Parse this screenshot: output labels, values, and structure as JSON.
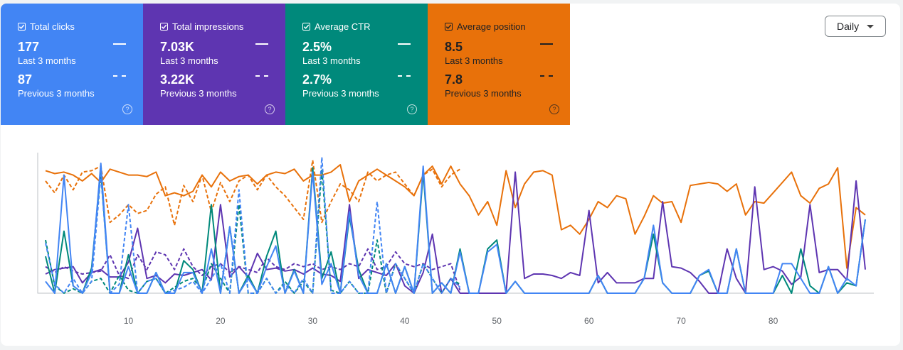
{
  "cards": [
    {
      "key": "clicks",
      "label": "Total clicks",
      "value_current": "177",
      "period_current": "Last 3 months",
      "value_previous": "87",
      "period_previous": "Previous 3 months",
      "color": "#4285f4",
      "help_icon": "question-circle-icon"
    },
    {
      "key": "impressions",
      "label": "Total impressions",
      "value_current": "7.03K",
      "period_current": "Last 3 months",
      "value_previous": "3.22K",
      "period_previous": "Previous 3 months",
      "color": "#5e35b1",
      "help_icon": "question-circle-icon"
    },
    {
      "key": "ctr",
      "label": "Average CTR",
      "value_current": "2.5%",
      "period_current": "Last 3 months",
      "value_previous": "2.7%",
      "period_previous": "Previous 3 months",
      "color": "#00897b",
      "help_icon": "question-circle-icon"
    },
    {
      "key": "position",
      "label": "Average position",
      "value_current": "8.5",
      "period_current": "Last 3 months",
      "value_previous": "7.8",
      "period_previous": "Previous 3 months",
      "color": "#e8710a",
      "help_icon": "question-circle-icon"
    }
  ],
  "granularity": {
    "selected": "Daily",
    "icon": "caret-down-icon"
  },
  "chart_data": {
    "type": "line",
    "x_ticks": [
      10,
      20,
      30,
      40,
      50,
      60,
      70,
      80
    ],
    "xlim": [
      1,
      90
    ],
    "ylim": [
      0,
      1
    ],
    "grid": false,
    "legend": "none",
    "series": [
      {
        "key": "position",
        "style": "solid",
        "color": "#e8710a",
        "values": [
          0.83,
          0.81,
          0.82,
          0.8,
          0.76,
          0.81,
          0.75,
          0.84,
          0.82,
          0.8,
          0.8,
          0.79,
          0.82,
          0.66,
          0.68,
          0.66,
          0.69,
          0.8,
          0.72,
          0.82,
          0.76,
          0.79,
          0.8,
          0.74,
          0.8,
          0.82,
          0.81,
          0.84,
          0.76,
          0.8,
          0.8,
          0.82,
          0.87,
          0.62,
          0.76,
          0.8,
          0.84,
          0.8,
          0.76,
          0.72,
          0.66,
          0.8,
          0.86,
          0.74,
          0.86,
          0.74,
          0.66,
          0.53,
          0.62,
          0.46,
          0.83,
          0.58,
          0.74,
          0.82,
          0.83,
          0.8,
          0.43,
          0.46,
          0.4,
          0.5,
          0.62,
          0.58,
          0.66,
          0.64,
          0.4,
          0.52,
          0.66,
          0.61,
          0.62,
          0.48,
          0.73,
          0.74,
          0.75,
          0.74,
          0.69,
          0.74,
          0.53,
          0.62,
          0.61,
          0.68,
          0.75,
          0.82,
          0.66,
          0.61,
          0.71,
          0.74,
          0.85,
          0.17,
          0.58,
          0.53
        ]
      },
      {
        "key": "position",
        "style": "dashed",
        "color": "#e8710a",
        "values": [
          0.76,
          0.68,
          0.8,
          0.7,
          0.82,
          0.83,
          0.86,
          0.48,
          0.53,
          0.6,
          0.54,
          0.56,
          0.67,
          0.72,
          0.46,
          0.73,
          0.62,
          0.8,
          0.55,
          0.75,
          0.62,
          0.76,
          0.8,
          0.7,
          0.8,
          0.72,
          0.66,
          0.58,
          0.5,
          0.9,
          0.48,
          0.62,
          0.74,
          0.7,
          0.62,
          0.82,
          0.76,
          0.8,
          0.82,
          0.74,
          0.66,
          0.8,
          0.84,
          0.72,
          0.8,
          0.84
        ]
      },
      {
        "key": "impressions",
        "style": "solid",
        "color": "#5e35b1",
        "values": [
          0.13,
          0.16,
          0.17,
          0.18,
          0.07,
          0.14,
          0.16,
          0.11,
          0.11,
          0.21,
          0.44,
          0.1,
          0.12,
          0.07,
          0.13,
          0.12,
          0.14,
          0.16,
          0.09,
          0.6,
          0.11,
          0.18,
          0.11,
          0.27,
          0.16,
          0.17,
          0.15,
          0.16,
          0.13,
          0.17,
          0.13,
          0.12,
          0.08,
          0.6,
          0.1,
          0.16,
          0.14,
          0.12,
          0.2,
          0.05,
          0.0,
          0.14,
          0.4,
          0.0,
          0.1,
          0.0,
          0.0,
          0.0,
          0.0,
          0.0,
          0.0,
          0.82,
          0.1,
          0.13,
          0.13,
          0.12,
          0.1,
          0.14,
          0.12,
          0.56,
          0.07,
          0.14,
          0.07,
          0.07,
          0.07,
          0.1,
          0.1,
          0.62,
          0.18,
          0.17,
          0.14,
          0.08,
          0.0,
          0.0,
          0.3,
          0.1,
          0.0,
          0.72,
          0.16,
          0.18,
          0.15,
          0.06,
          0.11,
          0.6,
          0.14,
          0.16,
          0.16,
          0.09,
          0.76,
          0.16
        ]
      },
      {
        "key": "impressions",
        "style": "dashed",
        "color": "#5e35b1",
        "values": [
          0.18,
          0.14,
          0.18,
          0.15,
          0.13,
          0.14,
          0.15,
          0.26,
          0.12,
          0.1,
          0.26,
          0.16,
          0.28,
          0.26,
          0.16,
          0.3,
          0.18,
          0.12,
          0.18,
          0.2,
          0.14,
          0.18,
          0.16,
          0.14,
          0.24,
          0.18,
          0.16,
          0.2,
          0.18,
          0.2,
          0.16,
          0.18,
          0.16,
          0.2,
          0.18,
          0.3,
          0.16,
          0.18,
          0.28,
          0.2,
          0.18,
          0.2,
          0.16,
          0.18,
          0.2,
          0.02
        ]
      },
      {
        "key": "ctr",
        "style": "solid",
        "color": "#00897b",
        "values": [
          0.25,
          0.0,
          0.42,
          0.05,
          0.0,
          0.17,
          0.83,
          0.0,
          0.0,
          0.26,
          0.0,
          0.0,
          0.14,
          0.0,
          0.0,
          0.22,
          0.16,
          0.0,
          0.6,
          0.0,
          0.45,
          0.0,
          0.12,
          0.0,
          0.25,
          0.42,
          0.0,
          0.16,
          0.0,
          0.85,
          0.1,
          0.28,
          0.0,
          0.52,
          0.16,
          0.0,
          0.0,
          0.2,
          0.0,
          0.18,
          0.0,
          0.82,
          0.0,
          0.07,
          0.0,
          0.3,
          0.0,
          0.0,
          0.3,
          0.36,
          0.0,
          0.08,
          0.0,
          0.0,
          0.0,
          0.0,
          0.0,
          0.0,
          0.0,
          0.0,
          0.12,
          0.0,
          0.0,
          0.0,
          0.0,
          0.1,
          0.4,
          0.07,
          0.0,
          0.0,
          0.0,
          0.12,
          0.15,
          0.0,
          0.0,
          0.3,
          0.0,
          0.0,
          0.0,
          0.0,
          0.12,
          0.0,
          0.3,
          0.05,
          0.0,
          0.18,
          0.0,
          0.07,
          0.05,
          0.5
        ]
      },
      {
        "key": "ctr",
        "style": "dashed",
        "color": "#00897b",
        "values": [
          0.36,
          0.05,
          0.0,
          0.03,
          0.0,
          0.08,
          0.1,
          0.0,
          0.12,
          0.02,
          0.0,
          0.08,
          0.1,
          0.0,
          0.04,
          0.08,
          0.1,
          0.02,
          0.2,
          0.1,
          0.0,
          0.6,
          0.0,
          0.0,
          0.1,
          0.0,
          0.08,
          0.0,
          0.08,
          0.0,
          0.84,
          0.02,
          0.0,
          0.08,
          0.0,
          0.0,
          0.36,
          0.0,
          0.2,
          0.1,
          0.0,
          0.2,
          0.1,
          0.0,
          0.1,
          0.06
        ]
      },
      {
        "key": "clicks",
        "style": "solid",
        "color": "#4285f4",
        "values": [
          0.08,
          0.0,
          0.8,
          0.05,
          0.0,
          0.14,
          0.88,
          0.0,
          0.0,
          0.18,
          0.0,
          0.0,
          0.14,
          0.0,
          0.0,
          0.14,
          0.14,
          0.0,
          0.3,
          0.0,
          0.45,
          0.0,
          0.1,
          0.0,
          0.18,
          0.32,
          0.0,
          0.15,
          0.0,
          0.82,
          0.06,
          0.2,
          0.0,
          0.55,
          0.12,
          0.0,
          0.0,
          0.2,
          0.0,
          0.18,
          0.0,
          0.86,
          0.0,
          0.07,
          0.0,
          0.28,
          0.0,
          0.0,
          0.28,
          0.33,
          0.0,
          0.08,
          0.0,
          0.0,
          0.0,
          0.0,
          0.0,
          0.0,
          0.0,
          0.0,
          0.12,
          0.0,
          0.0,
          0.0,
          0.0,
          0.1,
          0.46,
          0.07,
          0.0,
          0.0,
          0.0,
          0.12,
          0.16,
          0.0,
          0.0,
          0.3,
          0.0,
          0.0,
          0.0,
          0.0,
          0.2,
          0.2,
          0.1,
          0.0,
          0.0,
          0.18,
          0.0,
          0.1,
          0.05,
          0.5
        ]
      },
      {
        "key": "clicks",
        "style": "dashed",
        "color": "#4285f4",
        "values": [
          0.34,
          0.06,
          0.0,
          0.1,
          0.0,
          0.08,
          0.8,
          0.0,
          0.06,
          0.6,
          0.0,
          0.08,
          0.1,
          0.0,
          0.02,
          0.04,
          0.08,
          0.0,
          0.1,
          0.2,
          0.0,
          0.7,
          0.0,
          0.0,
          0.1,
          0.0,
          0.06,
          0.0,
          0.1,
          0.0,
          0.92,
          0.0,
          0.0,
          0.08,
          0.0,
          0.0,
          0.62,
          0.0,
          0.2,
          0.1,
          0.0,
          0.2,
          0.1,
          0.0,
          0.1,
          0.04
        ]
      }
    ]
  }
}
